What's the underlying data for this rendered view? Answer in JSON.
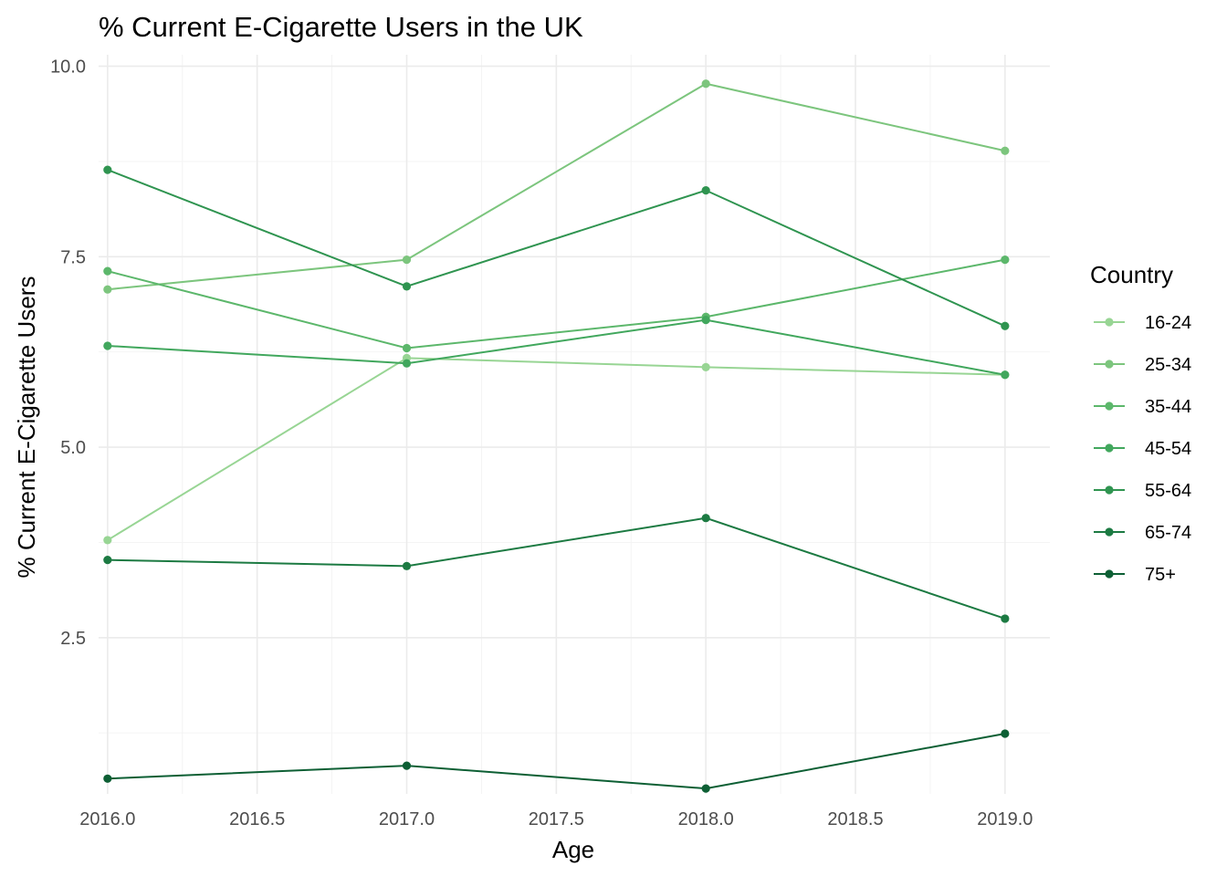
{
  "chart_data": {
    "type": "line",
    "title": "% Current E-Cigarette Users in the UK",
    "xlabel": "Age",
    "ylabel": "% Current E-Cigarette Users",
    "x": [
      2016,
      2017,
      2018,
      2019
    ],
    "xlim": [
      2015.97,
      2019.15
    ],
    "ylim": [
      0.45,
      10.15
    ],
    "x_ticks": [
      2016,
      2016.5,
      2017,
      2017.5,
      2018,
      2018.5,
      2019
    ],
    "x_tick_labels": [
      "2016.0",
      "2016.5",
      "2017.0",
      "2017.5",
      "2018.0",
      "2018.5",
      "2019.0"
    ],
    "y_ticks": [
      2.5,
      5.0,
      7.5,
      10.0
    ],
    "y_tick_labels": [
      "2.5",
      "5.0",
      "7.5",
      "10.0"
    ],
    "grid": true,
    "legend_title": "Country",
    "legend_position": "right",
    "series": [
      {
        "name": "16-24",
        "color": "#98d594",
        "values": [
          3.78,
          6.17,
          6.05,
          5.95
        ]
      },
      {
        "name": "25-34",
        "color": "#7cc57d",
        "values": [
          7.07,
          7.46,
          9.77,
          8.89
        ]
      },
      {
        "name": "35-44",
        "color": "#5cb76b",
        "values": [
          7.31,
          6.3,
          6.71,
          7.46
        ]
      },
      {
        "name": "45-54",
        "color": "#41a75d",
        "values": [
          6.33,
          6.1,
          6.67,
          5.95
        ]
      },
      {
        "name": "55-64",
        "color": "#2f9450",
        "values": [
          8.64,
          7.11,
          8.37,
          6.59
        ]
      },
      {
        "name": "65-74",
        "color": "#1c7a42",
        "values": [
          3.52,
          3.44,
          4.07,
          2.75
        ]
      },
      {
        "name": "75+",
        "color": "#0d5f34",
        "values": [
          0.65,
          0.82,
          0.52,
          1.24
        ]
      }
    ]
  }
}
